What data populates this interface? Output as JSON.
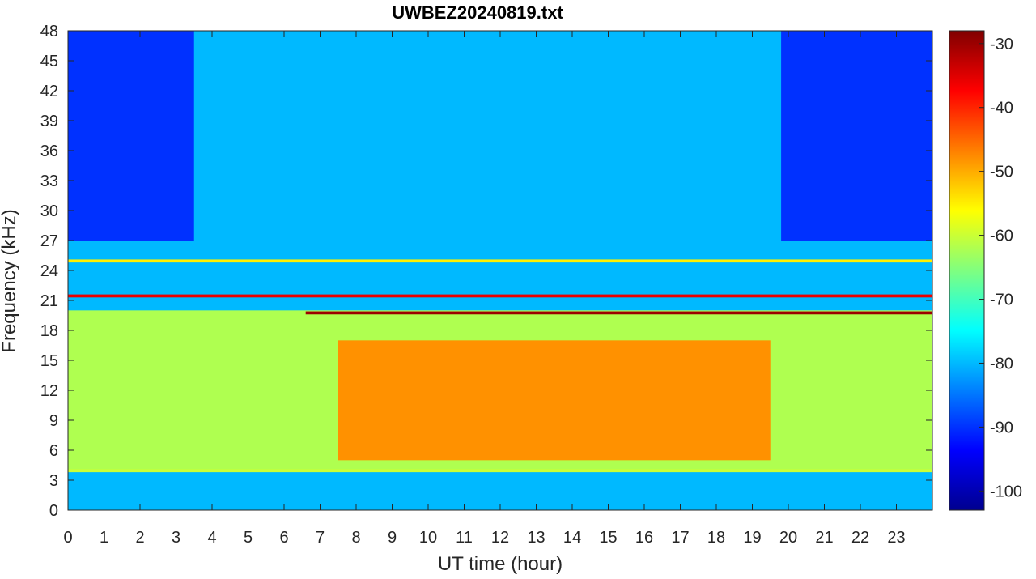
{
  "title": "UWBEZ20240819.txt",
  "chart_data": {
    "type": "heatmap",
    "title": "UWBEZ20240819.txt",
    "xlabel": "UT time (hour)",
    "ylabel": "Frequency (kHz)",
    "xlim": [
      0,
      24
    ],
    "ylim": [
      0,
      48
    ],
    "x_ticks": [
      "0",
      "1",
      "2",
      "3",
      "4",
      "5",
      "6",
      "7",
      "8",
      "9",
      "10",
      "11",
      "12",
      "13",
      "14",
      "15",
      "16",
      "17",
      "18",
      "19",
      "20",
      "21",
      "22",
      "23"
    ],
    "y_ticks": [
      "0",
      "3",
      "6",
      "9",
      "12",
      "15",
      "18",
      "21",
      "24",
      "27",
      "30",
      "33",
      "36",
      "39",
      "42",
      "45",
      "48"
    ],
    "colorbar": {
      "ticks": [
        "-30",
        "-40",
        "-50",
        "-60",
        "-70",
        "-80",
        "-90",
        "-100"
      ],
      "range": [
        -103,
        -28
      ],
      "colormap": "jet"
    },
    "background_level_db": -80,
    "features": [
      {
        "desc": "broadband low band",
        "freq_khz": [
          4,
          20
        ],
        "time_h": [
          0,
          24
        ],
        "level_db": -62
      },
      {
        "desc": "daytime intense band",
        "freq_khz": [
          5,
          17
        ],
        "time_h": [
          7.5,
          19.5
        ],
        "level_db": -48
      },
      {
        "desc": "quiet high band night",
        "freq_khz": [
          27,
          48
        ],
        "time_h": [
          0,
          3.5
        ],
        "level_db": -90
      },
      {
        "desc": "quiet high band night",
        "freq_khz": [
          27,
          48
        ],
        "time_h": [
          19.8,
          24
        ],
        "level_db": -90
      },
      {
        "desc": "transmitter line",
        "freq_khz": [
          21.3,
          21.6
        ],
        "time_h": [
          0,
          24
        ],
        "level_db": -36
      },
      {
        "desc": "transmitter line",
        "freq_khz": [
          19.6,
          19.9
        ],
        "time_h": [
          6.6,
          24
        ],
        "level_db": -30
      },
      {
        "desc": "transmitter line",
        "freq_khz": [
          24.8,
          25.1
        ],
        "time_h": [
          0,
          24
        ],
        "level_db": -55
      },
      {
        "desc": "line",
        "freq_khz": [
          3.8,
          4.1
        ],
        "time_h": [
          0,
          24
        ],
        "level_db": -60
      }
    ]
  }
}
